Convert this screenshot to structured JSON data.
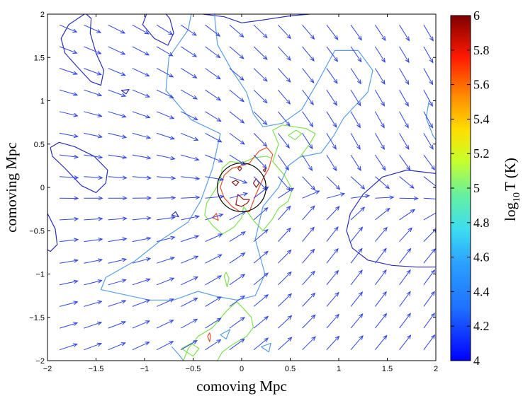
{
  "chart_data": {
    "type": "contour",
    "xlabel": "comoving Mpc",
    "ylabel": "comoving Mpc",
    "xlim": [
      -2,
      2
    ],
    "ylim": [
      -2,
      2
    ],
    "xticks": [
      "−2",
      "−1.5",
      "−1",
      "−0.5",
      "0",
      "0.5",
      "1",
      "1.5",
      "2"
    ],
    "yticks": [
      "−2",
      "−1.5",
      "−1",
      "−0.5",
      "0",
      "0.5",
      "1",
      "1.5",
      "2"
    ],
    "grid": false,
    "colorbar": {
      "label_main": "log",
      "label_sub": "10",
      "label_rest": "T (K)",
      "range": [
        4,
        6
      ],
      "ticks": [
        "4",
        "4.2",
        "4.4",
        "4.6",
        "4.8",
        "5",
        "5.2",
        "5.4",
        "5.6",
        "5.8",
        "6"
      ]
    },
    "circle": {
      "center": [
        0,
        0
      ],
      "radius": 0.25
    },
    "vector_color": "#2f43e6",
    "contours": [
      {
        "level": 4.0,
        "color": "#2a2fb8",
        "paths": [
          [
            [
              2.0,
              0.16
            ],
            [
              1.7,
              0.2
            ],
            [
              1.45,
              0.12
            ],
            [
              1.25,
              -0.08
            ],
            [
              1.12,
              -0.3
            ],
            [
              1.08,
              -0.5
            ],
            [
              1.14,
              -0.7
            ],
            [
              1.3,
              -0.84
            ],
            [
              1.55,
              -0.9
            ],
            [
              1.8,
              -0.92
            ],
            [
              2.0,
              -0.92
            ]
          ],
          [
            [
              -1.62,
              2.0
            ],
            [
              -1.78,
              1.88
            ],
            [
              -1.86,
              1.72
            ],
            [
              -1.82,
              1.55
            ],
            [
              -1.7,
              1.4
            ],
            [
              -1.55,
              1.22
            ],
            [
              -1.45,
              1.18
            ],
            [
              -1.42,
              1.35
            ],
            [
              -1.5,
              1.55
            ],
            [
              -1.56,
              1.78
            ],
            [
              -1.55,
              1.95
            ],
            [
              -1.6,
              2.0
            ]
          ],
          [
            [
              -0.98,
              2.0
            ],
            [
              -1.02,
              1.88
            ],
            [
              -0.9,
              1.72
            ],
            [
              -0.76,
              1.64
            ],
            [
              -0.7,
              1.78
            ],
            [
              -0.74,
              1.95
            ],
            [
              -0.78,
              2.0
            ]
          ],
          [
            [
              -1.97,
              0.46
            ],
            [
              -1.88,
              0.52
            ],
            [
              -1.72,
              0.47
            ],
            [
              -1.52,
              0.36
            ],
            [
              -1.38,
              0.2
            ],
            [
              -1.4,
              0.05
            ],
            [
              -1.5,
              -0.06
            ],
            [
              -1.65,
              0.02
            ],
            [
              -1.82,
              0.22
            ],
            [
              -1.95,
              0.36
            ],
            [
              -1.97,
              0.46
            ]
          ],
          [
            [
              -2.0,
              -0.3
            ],
            [
              -1.92,
              -0.48
            ],
            [
              -1.9,
              -0.66
            ],
            [
              -1.97,
              -0.74
            ],
            [
              -2.0,
              -0.72
            ]
          ],
          [
            [
              -1.24,
              1.12
            ],
            [
              -1.16,
              1.13
            ],
            [
              -1.19,
              1.08
            ],
            [
              -1.24,
              1.12
            ]
          ],
          [
            [
              -0.72,
              -0.32
            ],
            [
              -0.68,
              -0.28
            ],
            [
              -0.65,
              -0.34
            ],
            [
              -0.72,
              -0.32
            ]
          ],
          [
            [
              -0.4,
              2.0
            ],
            [
              -0.18,
              1.97
            ],
            [
              0.0,
              1.9
            ],
            [
              0.2,
              1.93
            ],
            [
              0.5,
              1.98
            ],
            [
              0.7,
              2.0
            ]
          ]
        ]
      },
      {
        "level": 4.6,
        "color": "#5a9ee6",
        "paths": [
          [
            [
              -0.28,
              2.0
            ],
            [
              -0.25,
              1.65
            ],
            [
              -0.1,
              1.35
            ],
            [
              0.05,
              1.1
            ],
            [
              0.12,
              0.85
            ],
            [
              0.22,
              0.7
            ],
            [
              0.42,
              0.74
            ],
            [
              0.62,
              0.9
            ],
            [
              0.8,
              1.25
            ],
            [
              0.96,
              1.58
            ],
            [
              1.2,
              1.58
            ],
            [
              1.35,
              1.35
            ],
            [
              1.3,
              1.1
            ],
            [
              1.05,
              0.8
            ],
            [
              0.95,
              0.6
            ],
            [
              0.82,
              0.4
            ],
            [
              0.6,
              0.35
            ],
            [
              0.48,
              0.25
            ],
            [
              0.38,
              0.0
            ],
            [
              0.22,
              -0.22
            ],
            [
              0.14,
              -0.6
            ],
            [
              0.24,
              -1.0
            ],
            [
              0.14,
              -1.25
            ],
            [
              -0.05,
              -1.3
            ],
            [
              -0.25,
              -1.26
            ],
            [
              -0.45,
              -1.2
            ],
            [
              -0.7,
              -1.3
            ],
            [
              -0.95,
              -1.3
            ],
            [
              -1.45,
              -1.18
            ],
            [
              -1.4,
              -1.04
            ],
            [
              -1.1,
              -0.85
            ],
            [
              -0.82,
              -0.6
            ],
            [
              -0.55,
              -0.4
            ],
            [
              -0.42,
              -0.15
            ],
            [
              -0.3,
              0.22
            ],
            [
              -0.22,
              0.62
            ],
            [
              -0.52,
              0.78
            ],
            [
              -0.78,
              1.12
            ],
            [
              -0.75,
              1.5
            ],
            [
              -0.55,
              1.82
            ],
            [
              -0.52,
              2.0
            ]
          ],
          [
            [
              1.93,
              1.0
            ],
            [
              1.9,
              0.8
            ],
            [
              1.97,
              0.6
            ],
            [
              2.0,
              0.55
            ]
          ],
          [
            [
              -0.22,
              -1.7
            ],
            [
              -0.12,
              -1.64
            ],
            [
              -0.16,
              -1.75
            ],
            [
              -0.22,
              -1.7
            ]
          ],
          [
            [
              0.2,
              -1.84
            ],
            [
              0.3,
              -1.8
            ],
            [
              0.28,
              -1.9
            ],
            [
              0.2,
              -1.84
            ]
          ],
          [
            [
              -0.72,
              -1.84
            ],
            [
              -0.64,
              -1.94
            ],
            [
              -0.6,
              -2.0
            ]
          ]
        ]
      },
      {
        "level": 5.0,
        "color": "#80e050",
        "paths": [
          [
            [
              0.48,
              0.6
            ],
            [
              0.56,
              0.66
            ],
            [
              0.62,
              0.62
            ],
            [
              0.55,
              0.55
            ],
            [
              0.48,
              0.6
            ]
          ],
          [
            [
              0.6,
              0.35
            ],
            [
              0.7,
              0.5
            ],
            [
              0.76,
              0.62
            ],
            [
              0.66,
              0.68
            ],
            [
              0.42,
              0.72
            ],
            [
              0.32,
              0.66
            ],
            [
              0.38,
              0.5
            ],
            [
              0.32,
              0.3
            ],
            [
              0.44,
              0.14
            ],
            [
              0.52,
              -0.02
            ],
            [
              0.48,
              -0.16
            ],
            [
              0.38,
              -0.24
            ],
            [
              0.32,
              -0.36
            ],
            [
              0.22,
              -0.5
            ],
            [
              0.12,
              -0.38
            ],
            [
              0.02,
              -0.22
            ],
            [
              0.0,
              -0.35
            ],
            [
              -0.08,
              -0.46
            ],
            [
              -0.2,
              -0.54
            ],
            [
              -0.3,
              -0.44
            ],
            [
              -0.38,
              -0.32
            ],
            [
              -0.36,
              -0.18
            ],
            [
              -0.28,
              -0.04
            ],
            [
              -0.22,
              0.08
            ],
            [
              -0.2,
              0.22
            ],
            [
              -0.12,
              0.3
            ],
            [
              0.0,
              0.28
            ],
            [
              0.12,
              0.34
            ],
            [
              0.26,
              0.36
            ],
            [
              0.3,
              0.34
            ]
          ],
          [
            [
              -0.15,
              -1.15
            ],
            [
              -0.18,
              -1.02
            ],
            [
              -0.16,
              -0.98
            ],
            [
              -0.13,
              -1.05
            ],
            [
              -0.15,
              -1.15
            ]
          ],
          [
            [
              -0.05,
              -1.32
            ],
            [
              -0.15,
              -1.42
            ],
            [
              -0.3,
              -1.62
            ],
            [
              -0.45,
              -1.72
            ],
            [
              -0.55,
              -1.86
            ],
            [
              -0.6,
              -2.0
            ]
          ],
          [
            [
              -0.25,
              -2.0
            ],
            [
              -0.2,
              -1.9
            ],
            [
              -0.1,
              -1.82
            ],
            [
              0.05,
              -1.72
            ],
            [
              0.12,
              -1.62
            ],
            [
              0.1,
              -1.5
            ],
            [
              0.02,
              -1.4
            ],
            [
              -0.05,
              -1.32
            ]
          ],
          [
            [
              -0.62,
              -1.86
            ],
            [
              -0.52,
              -1.8
            ],
            [
              -0.44,
              -1.86
            ],
            [
              -0.5,
              -1.95
            ],
            [
              -0.62,
              -1.86
            ]
          ]
        ]
      },
      {
        "level": 5.5,
        "color": "#e2502c",
        "paths": [
          [
            [
              0.08,
              0.28
            ],
            [
              0.12,
              0.34
            ],
            [
              0.18,
              0.42
            ],
            [
              0.26,
              0.46
            ],
            [
              0.32,
              0.38
            ],
            [
              0.28,
              0.22
            ],
            [
              0.22,
              0.1
            ],
            [
              0.14,
              -0.1
            ],
            [
              0.08,
              -0.28
            ],
            [
              -0.02,
              -0.28
            ],
            [
              -0.1,
              -0.22
            ],
            [
              -0.18,
              -0.12
            ],
            [
              -0.22,
              0.0
            ],
            [
              -0.18,
              0.14
            ],
            [
              -0.1,
              0.22
            ],
            [
              0.0,
              0.25
            ],
            [
              0.08,
              0.28
            ]
          ],
          [
            [
              -0.3,
              -0.35
            ],
            [
              -0.26,
              -0.3
            ],
            [
              -0.24,
              -0.38
            ],
            [
              -0.3,
              -0.35
            ]
          ],
          [
            [
              -0.35,
              -1.72
            ],
            [
              -0.33,
              -1.68
            ],
            [
              -0.32,
              -1.72
            ],
            [
              -0.33,
              -1.78
            ],
            [
              -0.35,
              -1.72
            ]
          ]
        ]
      },
      {
        "level": 6.0,
        "color": "#8b1a1a",
        "paths": [
          [
            [
              0.12,
              0.05
            ],
            [
              0.15,
              0.1
            ],
            [
              0.18,
              0.05
            ],
            [
              0.15,
              0.0
            ],
            [
              0.12,
              0.05
            ]
          ],
          [
            [
              -0.04,
              -0.08
            ],
            [
              -0.06,
              -0.2
            ],
            [
              0.0,
              -0.22
            ],
            [
              0.06,
              -0.18
            ],
            [
              0.08,
              -0.14
            ],
            [
              0.02,
              -0.14
            ],
            [
              -0.04,
              -0.08
            ]
          ],
          [
            [
              -0.1,
              0.06
            ],
            [
              -0.06,
              0.02
            ],
            [
              -0.03,
              0.06
            ],
            [
              -0.06,
              0.08
            ],
            [
              -0.1,
              0.06
            ]
          ],
          [
            [
              -0.04,
              0.22
            ],
            [
              -0.02,
              0.19
            ],
            [
              0.0,
              0.22
            ],
            [
              -0.02,
              0.24
            ],
            [
              -0.04,
              0.22
            ]
          ],
          [
            [
              0.22,
              0.2
            ],
            [
              0.25,
              0.22
            ],
            [
              0.24,
              0.18
            ],
            [
              0.22,
              0.2
            ]
          ]
        ]
      }
    ]
  }
}
